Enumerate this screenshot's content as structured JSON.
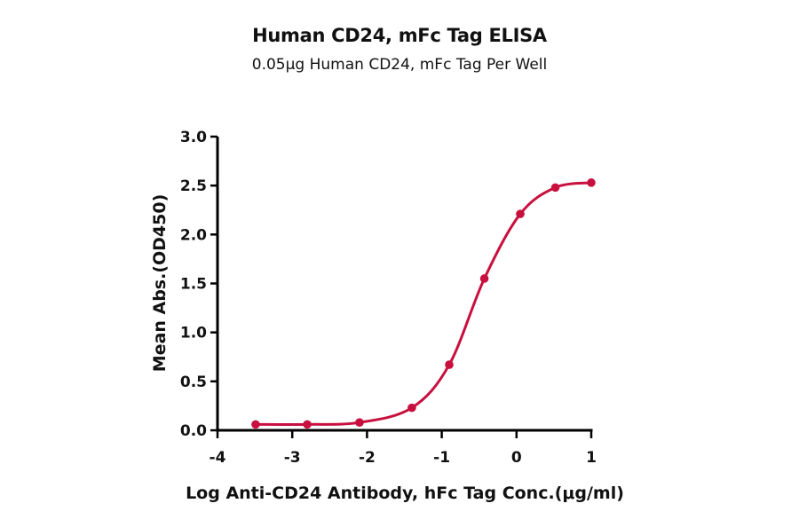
{
  "header": {
    "title": "Human CD24, mFc Tag ELISA",
    "subtitle": "0.05μg Human CD24, mFc Tag Per Well"
  },
  "axes": {
    "xlabel": "Log Anti-CD24 Antibody, hFc Tag Conc.(μg/ml)",
    "ylabel": "Mean Abs.(OD450)",
    "xticks": [
      "-4",
      "-3",
      "-2",
      "-1",
      "0",
      "1"
    ],
    "yticks": [
      "0.0",
      "0.5",
      "1.0",
      "1.5",
      "2.0",
      "2.5",
      "3.0"
    ]
  },
  "colors": {
    "series": "#c8103e",
    "axis": "#000000"
  },
  "chart_data": {
    "type": "line",
    "title": "Human CD24, mFc Tag ELISA",
    "subtitle": "0.05μg Human CD24, mFc Tag Per Well",
    "xlabel": "Log Anti-CD24 Antibody, hFc Tag Conc.(μg/ml)",
    "ylabel": "Mean Abs.(OD450)",
    "xlim": [
      -4,
      1
    ],
    "ylim": [
      0,
      3.0
    ],
    "xticks": [
      -4,
      -3,
      -2,
      -1,
      0,
      1
    ],
    "yticks": [
      0,
      0.5,
      1.0,
      1.5,
      2.0,
      2.5,
      3.0
    ],
    "grid": false,
    "legend": null,
    "series": [
      {
        "name": "Human CD24, mFc Tag",
        "fit": "sigmoidal (4PL) curve",
        "x": [
          -3.49,
          -2.8,
          -2.1,
          -1.4,
          -0.9,
          -0.43,
          0.05,
          0.52,
          1.0
        ],
        "y": [
          0.06,
          0.06,
          0.08,
          0.23,
          0.67,
          1.55,
          2.21,
          2.48,
          2.53
        ]
      }
    ]
  }
}
